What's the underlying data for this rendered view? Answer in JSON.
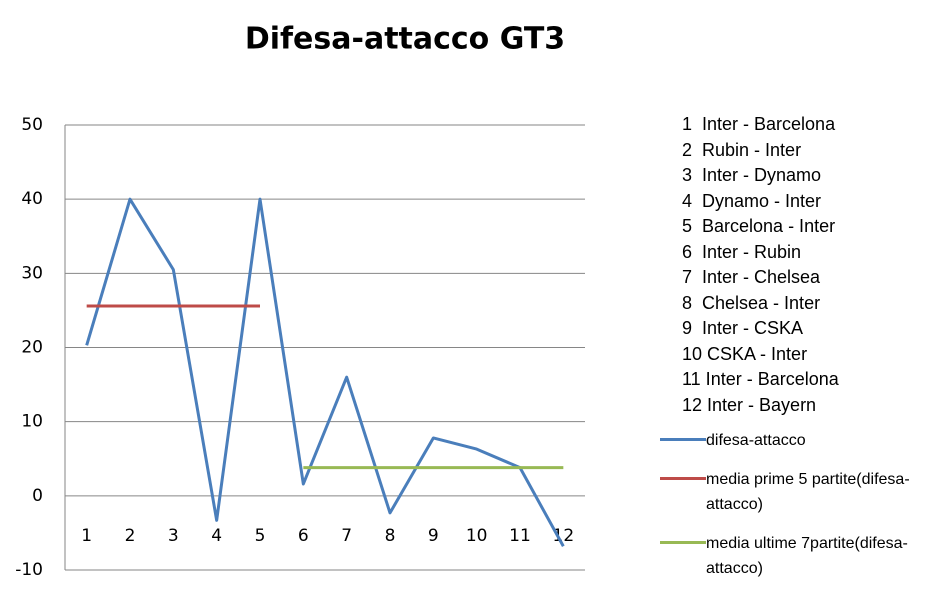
{
  "chart_data": {
    "type": "line",
    "title": "Difesa-attacco GT3",
    "categories": [
      "1",
      "2",
      "3",
      "4",
      "5",
      "6",
      "7",
      "8",
      "9",
      "10",
      "11",
      "12"
    ],
    "series": [
      {
        "name": "difesa-attacco",
        "color": "#4a7ebb",
        "values": [
          20.3,
          40,
          30.5,
          -3.3,
          40,
          1.6,
          16,
          -2.3,
          7.8,
          6.3,
          3.8,
          -6.8
        ]
      },
      {
        "name": "media prime 5 partite(difesa-attacco)",
        "color": "#be4b48",
        "values": [
          25.6,
          25.6,
          25.6,
          25.6,
          25.6,
          null,
          null,
          null,
          null,
          null,
          null,
          null
        ]
      },
      {
        "name": "media ultime 7partite(difesa-attacco)",
        "color": "#98b954",
        "values": [
          null,
          null,
          null,
          null,
          null,
          3.8,
          3.8,
          3.8,
          3.8,
          3.8,
          3.8,
          3.8
        ]
      }
    ],
    "ylim": [
      -10,
      50
    ],
    "yticks": [
      -10,
      0,
      10,
      20,
      30,
      40,
      50
    ],
    "grid": true,
    "annotations": [
      "1  Inter - Barcelona",
      "2  Rubin - Inter",
      "3  Inter - Dynamo",
      "4  Dynamo - Inter",
      "5  Barcelona - Inter",
      "6  Inter - Rubin",
      "7  Inter - Chelsea",
      "8  Chelsea - Inter",
      "9  Inter - CSKA",
      "10 CSKA - Inter",
      "11 Inter - Barcelona",
      "12 Inter - Bayern"
    ]
  }
}
